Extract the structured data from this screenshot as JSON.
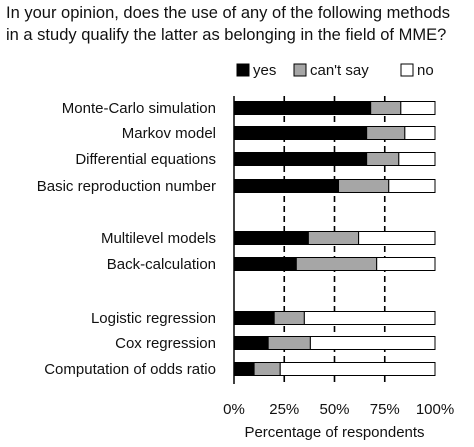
{
  "title_lines": [
    "In your opinion, does the use of any of the following methods",
    "in a study qualify the latter as belonging in the field of MME?"
  ],
  "chart_data": {
    "type": "bar",
    "orientation": "horizontal",
    "stacked": true,
    "categories": [
      "Monte-Carlo simulation",
      "Markov model",
      "Differential equations",
      "Basic reproduction number",
      "Multilevel models",
      "Back-calculation",
      "Logistic regression",
      "Cox regression",
      "Computation of odds ratio"
    ],
    "groups": [
      [
        0,
        1,
        2,
        3
      ],
      [
        4,
        5
      ],
      [
        6,
        7,
        8
      ]
    ],
    "series": [
      {
        "name": "yes",
        "color": "#000000",
        "values": [
          68,
          66,
          66,
          52,
          37,
          31,
          20,
          17,
          10
        ]
      },
      {
        "name": "can't say",
        "color": "#a6a6a6",
        "values": [
          15,
          19,
          16,
          25,
          25,
          40,
          15,
          21,
          13
        ]
      },
      {
        "name": "no",
        "color": "#ffffff",
        "values": [
          17,
          15,
          18,
          23,
          38,
          29,
          65,
          62,
          77
        ]
      }
    ],
    "xlim": [
      0,
      100
    ],
    "xticks": [
      "0%",
      "25%",
      "50%",
      "75%",
      "100%"
    ],
    "xtick_values": [
      0,
      25,
      50,
      75,
      100
    ],
    "xlabel": "Percentage of respondents",
    "gridlines": "dashed vertical at 25%, 50%, 75%",
    "legend_position": "top-right"
  }
}
